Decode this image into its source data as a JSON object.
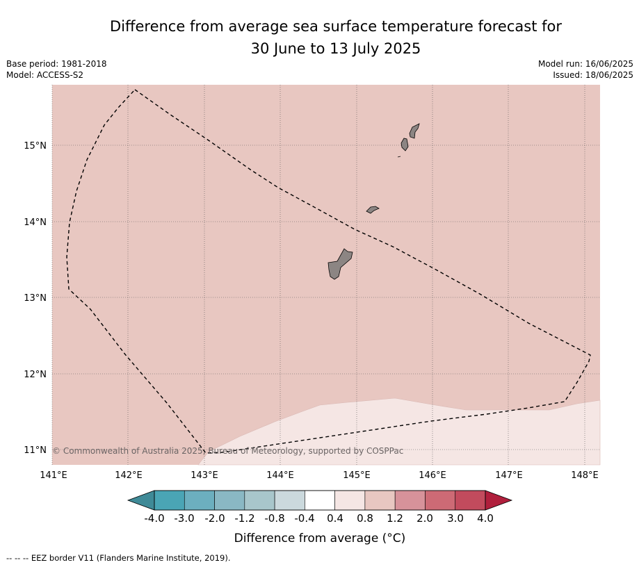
{
  "title_line1": "Difference from average sea surface temperature forecast for",
  "title_line2": "30 June to 13 July 2025",
  "base_period": "Base period: 1981-2018",
  "model": "Model: ACCESS-S2",
  "model_run": "Model run: 16/06/2025",
  "issued": "Issued: 18/06/2025",
  "x_ticks": [
    "141°E",
    "142°E",
    "143°E",
    "144°E",
    "145°E",
    "146°E",
    "147°E",
    "148°E"
  ],
  "y_ticks": [
    "15°N",
    "14°N",
    "13°N",
    "12°N",
    "11°N"
  ],
  "copyright": "© Commonwealth of Australia 2025, Bureau of Meteorology, supported by COSPPac",
  "colorbar": {
    "label": "Difference from average (°C)",
    "ticks": [
      "-4.0",
      "-3.0",
      "-2.0",
      "-1.2",
      "-0.8",
      "-0.4",
      "0.4",
      "0.8",
      "1.2",
      "2.0",
      "3.0",
      "4.0"
    ],
    "colors": [
      "#4aa5b5",
      "#6cafbf",
      "#8ab8c4",
      "#a8c6cb",
      "#cbd9dd",
      "#ffffff",
      "#f5e6e4",
      "#e8c7c1",
      "#d7929a",
      "#cd6a75",
      "#c24b5d"
    ],
    "under_color": "#3f8a97",
    "over_color": "#b01f3c"
  },
  "regions": {
    "anomaly_0_4_to_0_8_color": "#f5e6e4",
    "anomaly_0_8_to_1_2_color": "#e8c7c1",
    "land_color": "#8c8583"
  },
  "footnote": "--  --  -- EEZ border V11 (Flanders Marine Institute, 2019)."
}
